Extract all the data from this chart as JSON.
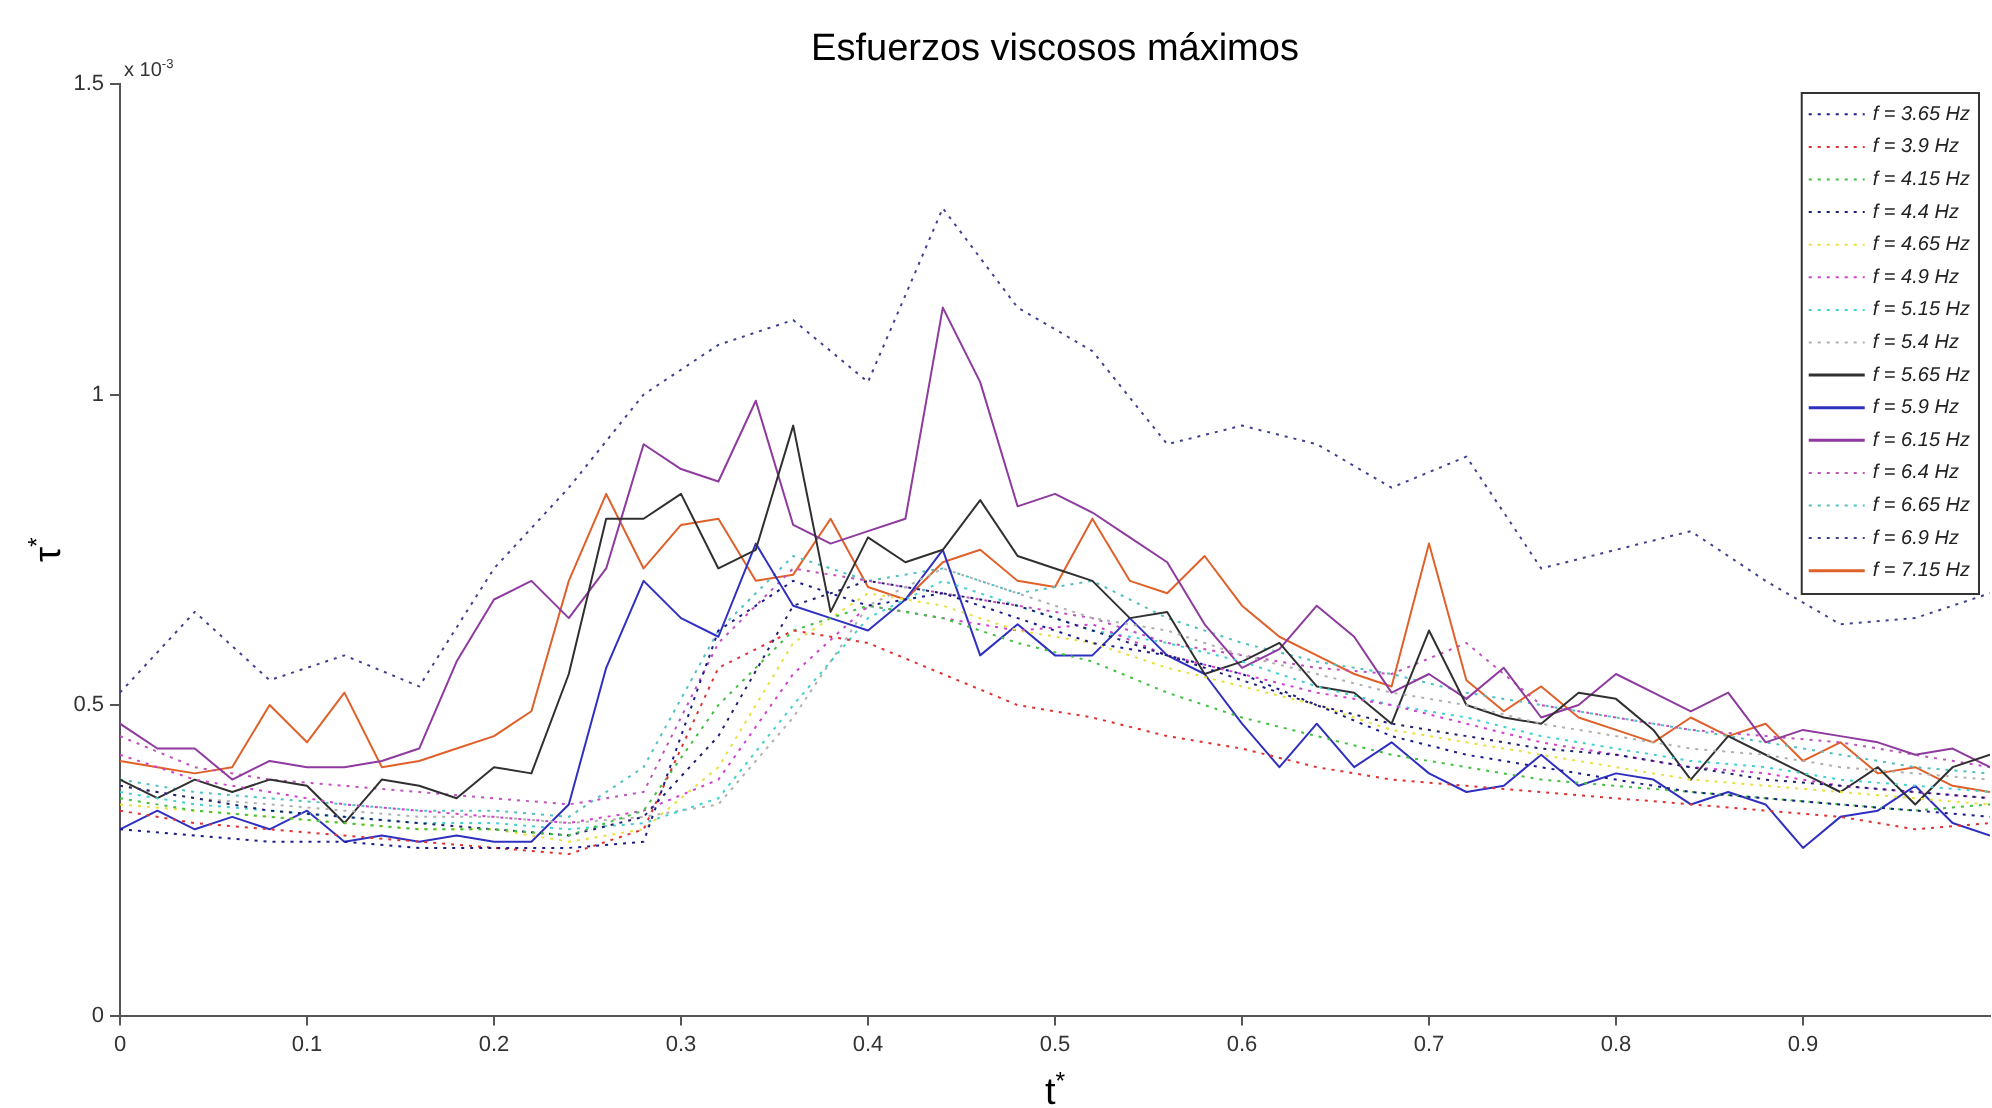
{
  "chart_data": {
    "type": "line",
    "title": "Esfuerzos viscosos máximos",
    "xlabel": "t$^{*}$",
    "ylabel": "τ$^{*}$",
    "annotations": [
      "x 10$^{-3}$"
    ],
    "x": [
      0,
      0.02,
      0.04,
      0.06,
      0.08,
      0.1,
      0.12,
      0.14,
      0.16,
      0.18,
      0.2,
      0.22,
      0.24,
      0.26,
      0.28,
      0.3,
      0.32,
      0.34,
      0.36,
      0.38,
      0.4,
      0.42,
      0.44,
      0.46,
      0.48,
      0.5,
      0.52,
      0.54,
      0.56,
      0.58,
      0.6,
      0.62,
      0.64,
      0.66,
      0.68,
      0.7,
      0.72,
      0.74,
      0.76,
      0.78,
      0.8,
      0.82,
      0.84,
      0.86,
      0.88,
      0.9,
      0.92,
      0.94,
      0.96,
      0.98,
      1
    ],
    "xlim": [
      0,
      1
    ],
    "xticks": [
      0,
      0.1,
      0.2,
      0.3,
      0.4,
      0.5,
      0.6,
      0.7,
      0.8,
      0.9
    ],
    "ylim": [
      0,
      1.5
    ],
    "yticks": [
      0,
      0.5,
      1,
      1.5
    ],
    "grid": false,
    "legend": "top right",
    "marker": "none",
    "series": [
      {
        "name": "f = 3.65 Hz",
        "color": "#1a1a8c",
        "line_style": "dotted",
        "x": [
          0,
          0.04,
          0.08,
          0.12,
          0.16,
          0.2,
          0.24,
          0.28,
          0.32,
          0.36,
          0.4,
          0.44,
          0.48,
          0.52,
          0.56,
          0.6,
          0.64,
          0.68,
          0.72,
          0.76,
          0.8,
          0.84,
          0.88,
          0.92,
          0.96,
          1
        ],
        "values": [
          0.3,
          0.29,
          0.28,
          0.28,
          0.27,
          0.27,
          0.27,
          0.28,
          0.62,
          0.7,
          0.66,
          0.68,
          0.64,
          0.6,
          0.58,
          0.55,
          0.5,
          0.45,
          0.42,
          0.4,
          0.38,
          0.36,
          0.35,
          0.34,
          0.33,
          0.32
        ]
      },
      {
        "name": "f = 3.9 Hz",
        "color": "#e03030",
        "line_style": "dotted",
        "x": [
          0,
          0.04,
          0.08,
          0.12,
          0.16,
          0.2,
          0.24,
          0.28,
          0.32,
          0.36,
          0.4,
          0.44,
          0.48,
          0.52,
          0.56,
          0.6,
          0.64,
          0.68,
          0.72,
          0.76,
          0.8,
          0.84,
          0.88,
          0.92,
          0.96,
          1
        ],
        "values": [
          0.33,
          0.31,
          0.3,
          0.29,
          0.28,
          0.27,
          0.26,
          0.3,
          0.56,
          0.62,
          0.6,
          0.55,
          0.5,
          0.48,
          0.45,
          0.43,
          0.4,
          0.38,
          0.37,
          0.36,
          0.35,
          0.34,
          0.33,
          0.32,
          0.3,
          0.31
        ]
      },
      {
        "name": "f = 4.15 Hz",
        "color": "#40c040",
        "line_style": "dotted",
        "x": [
          0,
          0.04,
          0.08,
          0.12,
          0.16,
          0.2,
          0.24,
          0.28,
          0.32,
          0.36,
          0.4,
          0.44,
          0.48,
          0.52,
          0.56,
          0.6,
          0.64,
          0.68,
          0.72,
          0.76,
          0.8,
          0.84,
          0.88,
          0.92,
          0.96,
          1
        ],
        "values": [
          0.35,
          0.33,
          0.32,
          0.31,
          0.3,
          0.3,
          0.29,
          0.33,
          0.5,
          0.62,
          0.66,
          0.64,
          0.6,
          0.57,
          0.52,
          0.48,
          0.45,
          0.42,
          0.4,
          0.38,
          0.37,
          0.36,
          0.35,
          0.34,
          0.33,
          0.34
        ]
      },
      {
        "name": "f = 4.4 Hz",
        "color": "#202070",
        "line_style": "dotted",
        "x": [
          0,
          0.04,
          0.08,
          0.12,
          0.16,
          0.2,
          0.24,
          0.28,
          0.32,
          0.36,
          0.4,
          0.44,
          0.48,
          0.52,
          0.56,
          0.6,
          0.64,
          0.68,
          0.72,
          0.76,
          0.8,
          0.84,
          0.88,
          0.92,
          0.96,
          1
        ],
        "values": [
          0.37,
          0.35,
          0.33,
          0.32,
          0.31,
          0.3,
          0.29,
          0.32,
          0.45,
          0.66,
          0.7,
          0.68,
          0.66,
          0.62,
          0.58,
          0.54,
          0.5,
          0.47,
          0.45,
          0.43,
          0.42,
          0.4,
          0.38,
          0.37,
          0.36,
          0.35
        ]
      },
      {
        "name": "f = 4.65 Hz",
        "color": "#e8e040",
        "line_style": "dotted",
        "x": [
          0,
          0.04,
          0.08,
          0.12,
          0.16,
          0.2,
          0.24,
          0.28,
          0.32,
          0.36,
          0.4,
          0.44,
          0.48,
          0.52,
          0.56,
          0.6,
          0.64,
          0.68,
          0.72,
          0.76,
          0.8,
          0.84,
          0.88,
          0.92,
          0.96,
          1
        ],
        "values": [
          0.34,
          0.33,
          0.32,
          0.31,
          0.3,
          0.3,
          0.28,
          0.3,
          0.4,
          0.6,
          0.68,
          0.66,
          0.62,
          0.6,
          0.56,
          0.53,
          0.5,
          0.46,
          0.44,
          0.42,
          0.4,
          0.38,
          0.37,
          0.36,
          0.35,
          0.34
        ]
      },
      {
        "name": "f = 4.9 Hz",
        "color": "#d040d0",
        "line_style": "dotted",
        "x": [
          0,
          0.04,
          0.08,
          0.12,
          0.16,
          0.2,
          0.24,
          0.28,
          0.32,
          0.36,
          0.4,
          0.44,
          0.48,
          0.52,
          0.56,
          0.6,
          0.64,
          0.68,
          0.72,
          0.76,
          0.8,
          0.84,
          0.88,
          0.92,
          0.96,
          1
        ],
        "values": [
          0.42,
          0.38,
          0.36,
          0.34,
          0.33,
          0.32,
          0.31,
          0.33,
          0.38,
          0.55,
          0.66,
          0.64,
          0.62,
          0.63,
          0.58,
          0.55,
          0.52,
          0.5,
          0.47,
          0.44,
          0.42,
          0.4,
          0.39,
          0.37,
          0.36,
          0.35
        ]
      },
      {
        "name": "f = 5.15 Hz",
        "color": "#40d0d0",
        "line_style": "dotted",
        "x": [
          0,
          0.04,
          0.08,
          0.12,
          0.16,
          0.2,
          0.24,
          0.28,
          0.32,
          0.36,
          0.4,
          0.44,
          0.48,
          0.52,
          0.56,
          0.6,
          0.64,
          0.68,
          0.72,
          0.76,
          0.8,
          0.84,
          0.88,
          0.92,
          0.96,
          1
        ],
        "values": [
          0.36,
          0.34,
          0.33,
          0.32,
          0.31,
          0.31,
          0.3,
          0.31,
          0.35,
          0.5,
          0.64,
          0.7,
          0.66,
          0.62,
          0.6,
          0.57,
          0.53,
          0.5,
          0.48,
          0.45,
          0.43,
          0.41,
          0.4,
          0.38,
          0.37,
          0.36
        ]
      },
      {
        "name": "f = 5.4 Hz",
        "color": "#b0b0b0",
        "line_style": "dotted",
        "x": [
          0,
          0.04,
          0.08,
          0.12,
          0.16,
          0.2,
          0.24,
          0.28,
          0.32,
          0.36,
          0.4,
          0.44,
          0.48,
          0.52,
          0.56,
          0.6,
          0.64,
          0.68,
          0.72,
          0.76,
          0.8,
          0.84,
          0.88,
          0.92,
          0.96,
          1
        ],
        "values": [
          0.37,
          0.35,
          0.34,
          0.33,
          0.32,
          0.32,
          0.31,
          0.32,
          0.34,
          0.48,
          0.66,
          0.72,
          0.68,
          0.64,
          0.62,
          0.58,
          0.55,
          0.52,
          0.5,
          0.47,
          0.45,
          0.43,
          0.42,
          0.4,
          0.39,
          0.38
        ]
      },
      {
        "name": "f = 5.65 Hz",
        "color": "#303030",
        "line_style": "solid",
        "values": [
          0.38,
          0.35,
          0.38,
          0.36,
          0.38,
          0.37,
          0.31,
          0.38,
          0.37,
          0.35,
          0.4,
          0.39,
          0.55,
          0.8,
          0.8,
          0.84,
          0.72,
          0.75,
          0.95,
          0.65,
          0.77,
          0.73,
          0.75,
          0.83,
          0.74,
          0.72,
          0.7,
          0.64,
          0.65,
          0.55,
          0.57,
          0.6,
          0.53,
          0.52,
          0.47,
          0.62,
          0.5,
          0.48,
          0.47,
          0.52,
          0.51,
          0.46,
          0.38,
          0.45,
          0.42,
          0.39,
          0.36,
          0.4,
          0.34,
          0.4,
          0.42
        ]
      },
      {
        "name": "f = 5.9 Hz",
        "color": "#3030c0",
        "line_style": "solid",
        "values": [
          0.3,
          0.33,
          0.3,
          0.32,
          0.3,
          0.33,
          0.28,
          0.29,
          0.28,
          0.29,
          0.28,
          0.28,
          0.34,
          0.56,
          0.7,
          0.64,
          0.61,
          0.76,
          0.66,
          0.64,
          0.62,
          0.67,
          0.75,
          0.58,
          0.63,
          0.58,
          0.58,
          0.64,
          0.58,
          0.55,
          0.47,
          0.4,
          0.47,
          0.4,
          0.44,
          0.39,
          0.36,
          0.37,
          0.42,
          0.37,
          0.39,
          0.38,
          0.34,
          0.36,
          0.34,
          0.27,
          0.32,
          0.33,
          0.37,
          0.31,
          0.29
        ]
      },
      {
        "name": "f = 6.15 Hz",
        "color": "#8e3a9e",
        "line_style": "solid",
        "values": [
          0.47,
          0.43,
          0.43,
          0.38,
          0.41,
          0.4,
          0.4,
          0.41,
          0.43,
          0.57,
          0.67,
          0.7,
          0.64,
          0.72,
          0.92,
          0.88,
          0.86,
          0.99,
          0.79,
          0.76,
          0.78,
          0.8,
          1.14,
          1.02,
          0.82,
          0.84,
          0.81,
          0.77,
          0.73,
          0.63,
          0.56,
          0.59,
          0.66,
          0.61,
          0.52,
          0.55,
          0.51,
          0.56,
          0.48,
          0.5,
          0.55,
          0.52,
          0.49,
          0.52,
          0.44,
          0.46,
          0.45,
          0.44,
          0.42,
          0.43,
          0.4
        ]
      },
      {
        "name": "f = 6.4 Hz",
        "color": "#c050c0",
        "line_style": "dotted",
        "x": [
          0,
          0.04,
          0.08,
          0.12,
          0.16,
          0.2,
          0.24,
          0.28,
          0.32,
          0.36,
          0.4,
          0.44,
          0.48,
          0.52,
          0.56,
          0.6,
          0.64,
          0.68,
          0.72,
          0.76,
          0.8,
          0.84,
          0.88,
          0.92,
          0.96,
          1
        ],
        "values": [
          0.45,
          0.4,
          0.38,
          0.37,
          0.36,
          0.35,
          0.34,
          0.36,
          0.6,
          0.72,
          0.7,
          0.68,
          0.66,
          0.64,
          0.6,
          0.58,
          0.56,
          0.55,
          0.6,
          0.5,
          0.48,
          0.46,
          0.45,
          0.44,
          0.42,
          0.4
        ]
      },
      {
        "name": "f = 6.65 Hz",
        "color": "#50c0c0",
        "line_style": "dotted",
        "x": [
          0,
          0.04,
          0.08,
          0.12,
          0.16,
          0.2,
          0.24,
          0.28,
          0.32,
          0.36,
          0.4,
          0.44,
          0.48,
          0.52,
          0.56,
          0.6,
          0.64,
          0.68,
          0.72,
          0.76,
          0.8,
          0.84,
          0.88,
          0.92,
          0.96,
          1
        ],
        "values": [
          0.38,
          0.36,
          0.35,
          0.34,
          0.33,
          0.33,
          0.32,
          0.4,
          0.62,
          0.74,
          0.7,
          0.72,
          0.68,
          0.7,
          0.64,
          0.6,
          0.57,
          0.55,
          0.52,
          0.5,
          0.48,
          0.46,
          0.44,
          0.42,
          0.4,
          0.39
        ]
      },
      {
        "name": "f = 6.9 Hz",
        "color": "#404090",
        "line_style": "dotted",
        "x": [
          0,
          0.04,
          0.08,
          0.12,
          0.16,
          0.2,
          0.24,
          0.28,
          0.32,
          0.36,
          0.4,
          0.44,
          0.48,
          0.52,
          0.56,
          0.6,
          0.64,
          0.68,
          0.72,
          0.76,
          0.8,
          0.84,
          0.88,
          0.92,
          0.96,
          1
        ],
        "values": [
          0.52,
          0.65,
          0.54,
          0.58,
          0.53,
          0.72,
          0.85,
          1.0,
          1.08,
          1.12,
          1.02,
          1.3,
          1.14,
          1.07,
          0.92,
          0.95,
          0.92,
          0.85,
          0.9,
          0.72,
          0.75,
          0.78,
          0.7,
          0.63,
          0.64,
          0.68
        ]
      },
      {
        "name": "f = 7.15 Hz",
        "color": "#e0602a",
        "line_style": "solid",
        "values": [
          0.41,
          0.4,
          0.39,
          0.4,
          0.5,
          0.44,
          0.52,
          0.4,
          0.41,
          0.43,
          0.45,
          0.49,
          0.7,
          0.84,
          0.72,
          0.79,
          0.8,
          0.7,
          0.71,
          0.8,
          0.69,
          0.67,
          0.73,
          0.75,
          0.7,
          0.69,
          0.8,
          0.7,
          0.68,
          0.74,
          0.66,
          0.61,
          0.58,
          0.55,
          0.53,
          0.76,
          0.54,
          0.49,
          0.53,
          0.48,
          0.46,
          0.44,
          0.48,
          0.45,
          0.47,
          0.41,
          0.44,
          0.39,
          0.4,
          0.37,
          0.36
        ]
      }
    ]
  }
}
